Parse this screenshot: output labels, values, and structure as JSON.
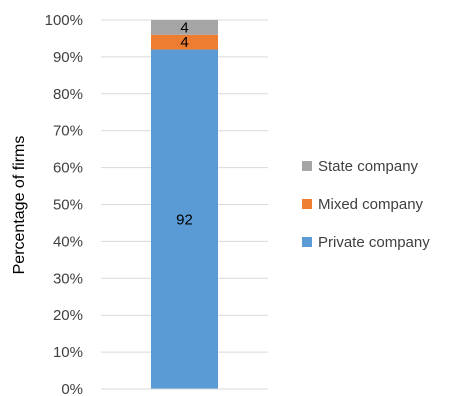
{
  "chart_data": {
    "type": "bar",
    "stacked": true,
    "categories": [
      ""
    ],
    "ylabel": "Percentage of firms",
    "ylim": [
      0,
      100
    ],
    "yticks": [
      "0%",
      "10%",
      "20%",
      "30%",
      "40%",
      "50%",
      "60%",
      "70%",
      "80%",
      "90%",
      "100%"
    ],
    "grid": true,
    "legend_position": "right",
    "series": [
      {
        "name": "Private company",
        "values": [
          92
        ],
        "color": "#5B9BD5",
        "label": "92"
      },
      {
        "name": "Mixed company",
        "values": [
          4
        ],
        "color": "#ED7D31",
        "label": "4"
      },
      {
        "name": "State company",
        "values": [
          4
        ],
        "color": "#A5A5A5",
        "label": "4"
      }
    ],
    "legend_order": [
      "State company",
      "Mixed company",
      "Private company"
    ]
  }
}
